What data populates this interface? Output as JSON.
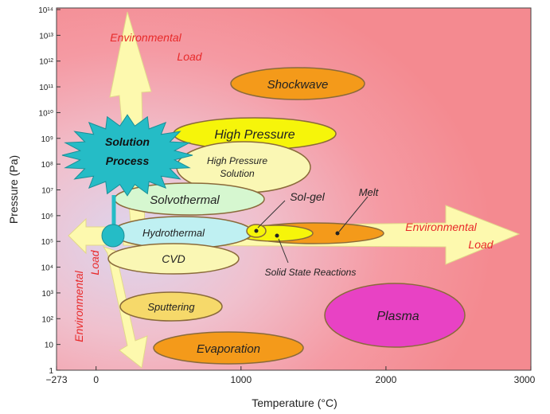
{
  "axes": {
    "x_label": "Temperature (°C)",
    "y_label": "Pressure  (Pa)",
    "x_ticks": [
      "−273",
      "0",
      "1000",
      "2000",
      "3000"
    ],
    "x_tick_values": [
      -273,
      0,
      1000,
      2000,
      3000
    ],
    "y_ticks": [
      "1",
      "10",
      "10²",
      "10³",
      "10⁴",
      "10⁵",
      "10⁶",
      "10⁷",
      "10⁸",
      "10⁹",
      "10¹⁰",
      "10¹¹",
      "10¹²",
      "10¹³",
      "10¹⁴"
    ],
    "y_tick_exponents": [
      0,
      1,
      2,
      3,
      4,
      5,
      6,
      7,
      8,
      9,
      10,
      11,
      12,
      13,
      14
    ]
  },
  "processes": {
    "shockwave": "Shockwave",
    "high_pressure": "High Pressure",
    "high_pressure_solution_line1": "High Pressure",
    "high_pressure_solution_line2": "Solution",
    "solvothermal": "Solvothermal",
    "hydrothermal": "Hydrothermal",
    "cvd": "CVD",
    "sputtering": "Sputtering",
    "evaporation": "Evaporation",
    "plasma": "Plasma"
  },
  "annotations": {
    "sol_gel": "Sol-gel",
    "melt": "Melt",
    "solid_state_reactions": "Solid State Reactions",
    "solution_process_line1": "Solution",
    "solution_process_line2": "Process"
  },
  "environmental_load": {
    "top_line1": "Environmental",
    "top_line2": "Load",
    "right_line1": "Environmental",
    "right_line2": "Load",
    "left_line1": "Environmental",
    "left_line2": "Load"
  },
  "colors": {
    "background_outer": "#f48a90",
    "background_center": "#dcd6ef",
    "arrow_fill": "#fdf9ae",
    "yellow_ellipse": "#f6f50a",
    "light_yellow_ellipse": "#faf7b4",
    "light_green_ellipse": "#d6f7d0",
    "light_cyan_ellipse": "#bff0f2",
    "orange_ellipse": "#f49a1a",
    "light_orange_ellipse": "#f9d79a",
    "magenta_ellipse": "#e842c4",
    "solution_burst": "#25bcc6",
    "label_red": "#e82a2a"
  }
}
